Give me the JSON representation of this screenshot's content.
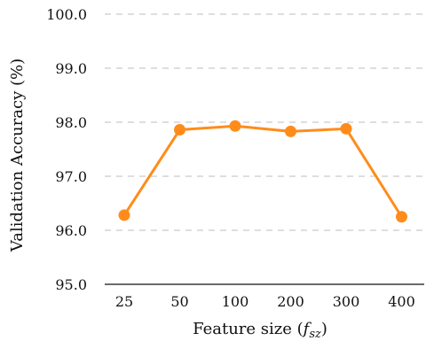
{
  "chart_data": {
    "type": "line",
    "categories": [
      "25",
      "50",
      "100",
      "200",
      "300",
      "400"
    ],
    "series": [
      {
        "values": [
          96.28,
          97.86,
          97.93,
          97.83,
          97.88,
          96.25
        ],
        "color": "#ff8c1a"
      }
    ],
    "yticks": [
      "95.0",
      "96.0",
      "97.0",
      "98.0",
      "99.0",
      "100.0"
    ],
    "ylim": [
      95.0,
      100.0
    ],
    "xlabel_main": "Feature size (",
    "xlabel_var": "f",
    "xlabel_sub": "sz",
    "xlabel_close": ")",
    "ylabel": "Validation Accuracy (%)",
    "grid": "horizontal-dashed",
    "colors": {
      "grid": "#bdbdbd",
      "axis": "#111111"
    }
  }
}
